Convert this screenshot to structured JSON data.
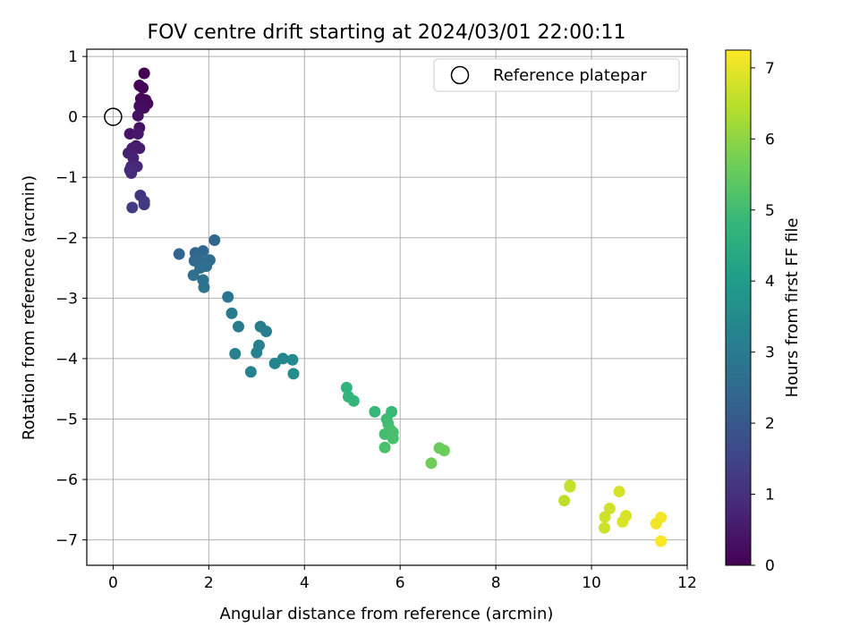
{
  "chart_data": {
    "type": "scatter",
    "title": "FOV centre drift starting at 2024/03/01 22:00:11",
    "xlabel": "Angular distance from reference (arcmin)",
    "ylabel": "Rotation from reference (arcmin)",
    "xlim": [
      -0.55,
      12
    ],
    "ylim": [
      -7.42,
      1.12
    ],
    "xticks": [
      0,
      2,
      4,
      6,
      8,
      10,
      12
    ],
    "yticks": [
      1,
      0,
      -1,
      -2,
      -3,
      -4,
      -5,
      -6,
      -7
    ],
    "grid": true,
    "legend": {
      "position": "top-right",
      "entries": [
        "Reference platepar"
      ]
    },
    "reference_point": {
      "x": 0,
      "y": 0
    },
    "colorbar": {
      "label": "Hours from first FF file",
      "range": [
        0,
        7.25
      ],
      "ticks": [
        0,
        1,
        2,
        3,
        4,
        5,
        6,
        7
      ],
      "colormap": "viridis",
      "stops": [
        "#440154",
        "#482878",
        "#3e4989",
        "#31688e",
        "#26828e",
        "#1f9e89",
        "#35b779",
        "#6ece58",
        "#b5de2b",
        "#fde725"
      ]
    },
    "series": [
      {
        "points": [
          {
            "x": 0.65,
            "y": 0.72,
            "c": 0.0
          },
          {
            "x": 0.55,
            "y": 0.52,
            "c": 0.05
          },
          {
            "x": 0.62,
            "y": 0.48,
            "c": 0.1
          },
          {
            "x": 0.58,
            "y": 0.3,
            "c": 0.12
          },
          {
            "x": 0.68,
            "y": 0.28,
            "c": 0.15
          },
          {
            "x": 0.72,
            "y": 0.22,
            "c": 0.18
          },
          {
            "x": 0.65,
            "y": 0.15,
            "c": 0.2
          },
          {
            "x": 0.55,
            "y": 0.18,
            "c": 0.25
          },
          {
            "x": 0.52,
            "y": 0.02,
            "c": 0.3
          },
          {
            "x": 0.55,
            "y": -0.18,
            "c": 0.35
          },
          {
            "x": 0.35,
            "y": -0.28,
            "c": 0.4
          },
          {
            "x": 0.52,
            "y": -0.28,
            "c": 0.45
          },
          {
            "x": 0.48,
            "y": -0.48,
            "c": 0.5
          },
          {
            "x": 0.55,
            "y": -0.52,
            "c": 0.55
          },
          {
            "x": 0.4,
            "y": -0.52,
            "c": 0.6
          },
          {
            "x": 0.32,
            "y": -0.6,
            "c": 0.65
          },
          {
            "x": 0.42,
            "y": -0.68,
            "c": 0.7
          },
          {
            "x": 0.38,
            "y": -0.82,
            "c": 0.75
          },
          {
            "x": 0.5,
            "y": -0.82,
            "c": 0.8
          },
          {
            "x": 0.35,
            "y": -0.88,
            "c": 0.85
          },
          {
            "x": 0.38,
            "y": -0.93,
            "c": 0.9
          },
          {
            "x": 0.57,
            "y": -1.3,
            "c": 1.1
          },
          {
            "x": 0.65,
            "y": -1.4,
            "c": 1.2
          },
          {
            "x": 0.65,
            "y": -1.45,
            "c": 1.25
          },
          {
            "x": 0.4,
            "y": -1.5,
            "c": 1.3
          },
          {
            "x": 1.38,
            "y": -2.27,
            "c": 2.3
          },
          {
            "x": 1.72,
            "y": -2.25,
            "c": 2.35
          },
          {
            "x": 1.88,
            "y": -2.22,
            "c": 2.4
          },
          {
            "x": 2.12,
            "y": -2.04,
            "c": 2.45
          },
          {
            "x": 1.7,
            "y": -2.38,
            "c": 2.5
          },
          {
            "x": 1.8,
            "y": -2.35,
            "c": 2.5
          },
          {
            "x": 2.02,
            "y": -2.37,
            "c": 2.55
          },
          {
            "x": 1.95,
            "y": -2.47,
            "c": 2.6
          },
          {
            "x": 1.82,
            "y": -2.5,
            "c": 2.6
          },
          {
            "x": 1.68,
            "y": -2.62,
            "c": 2.65
          },
          {
            "x": 1.88,
            "y": -2.7,
            "c": 2.7
          },
          {
            "x": 1.9,
            "y": -2.82,
            "c": 2.75
          },
          {
            "x": 2.4,
            "y": -2.98,
            "c": 2.85
          },
          {
            "x": 2.48,
            "y": -3.25,
            "c": 2.95
          },
          {
            "x": 2.62,
            "y": -3.47,
            "c": 3.0
          },
          {
            "x": 3.08,
            "y": -3.47,
            "c": 3.05
          },
          {
            "x": 3.2,
            "y": -3.55,
            "c": 3.1
          },
          {
            "x": 3.05,
            "y": -3.78,
            "c": 3.15
          },
          {
            "x": 2.55,
            "y": -3.92,
            "c": 3.15
          },
          {
            "x": 3.0,
            "y": -3.9,
            "c": 3.2
          },
          {
            "x": 3.55,
            "y": -4.0,
            "c": 3.35
          },
          {
            "x": 3.38,
            "y": -4.08,
            "c": 3.3
          },
          {
            "x": 3.75,
            "y": -4.02,
            "c": 3.45
          },
          {
            "x": 2.88,
            "y": -4.22,
            "c": 3.25
          },
          {
            "x": 3.77,
            "y": -4.25,
            "c": 3.5
          },
          {
            "x": 4.88,
            "y": -4.48,
            "c": 4.7
          },
          {
            "x": 4.92,
            "y": -4.63,
            "c": 4.75
          },
          {
            "x": 5.03,
            "y": -4.7,
            "c": 4.8
          },
          {
            "x": 5.47,
            "y": -4.88,
            "c": 4.85
          },
          {
            "x": 5.82,
            "y": -4.88,
            "c": 4.9
          },
          {
            "x": 5.72,
            "y": -5.0,
            "c": 4.95
          },
          {
            "x": 5.75,
            "y": -5.08,
            "c": 5.0
          },
          {
            "x": 5.8,
            "y": -5.18,
            "c": 5.05
          },
          {
            "x": 5.68,
            "y": -5.25,
            "c": 5.05
          },
          {
            "x": 5.85,
            "y": -5.22,
            "c": 5.1
          },
          {
            "x": 5.85,
            "y": -5.32,
            "c": 5.1
          },
          {
            "x": 5.68,
            "y": -5.47,
            "c": 5.15
          },
          {
            "x": 6.82,
            "y": -5.48,
            "c": 5.55
          },
          {
            "x": 6.92,
            "y": -5.52,
            "c": 5.6
          },
          {
            "x": 6.65,
            "y": -5.73,
            "c": 5.65
          },
          {
            "x": 9.55,
            "y": -6.1,
            "c": 6.6
          },
          {
            "x": 9.55,
            "y": -6.12,
            "c": 6.6
          },
          {
            "x": 10.58,
            "y": -6.2,
            "c": 6.8
          },
          {
            "x": 9.43,
            "y": -6.35,
            "c": 6.55
          },
          {
            "x": 10.38,
            "y": -6.48,
            "c": 6.75
          },
          {
            "x": 10.28,
            "y": -6.62,
            "c": 6.7
          },
          {
            "x": 10.72,
            "y": -6.6,
            "c": 6.85
          },
          {
            "x": 10.65,
            "y": -6.7,
            "c": 6.85
          },
          {
            "x": 10.27,
            "y": -6.8,
            "c": 6.7
          },
          {
            "x": 11.45,
            "y": -6.63,
            "c": 7.15
          },
          {
            "x": 11.35,
            "y": -6.73,
            "c": 7.1
          },
          {
            "x": 11.45,
            "y": -7.02,
            "c": 7.2
          }
        ]
      }
    ]
  }
}
